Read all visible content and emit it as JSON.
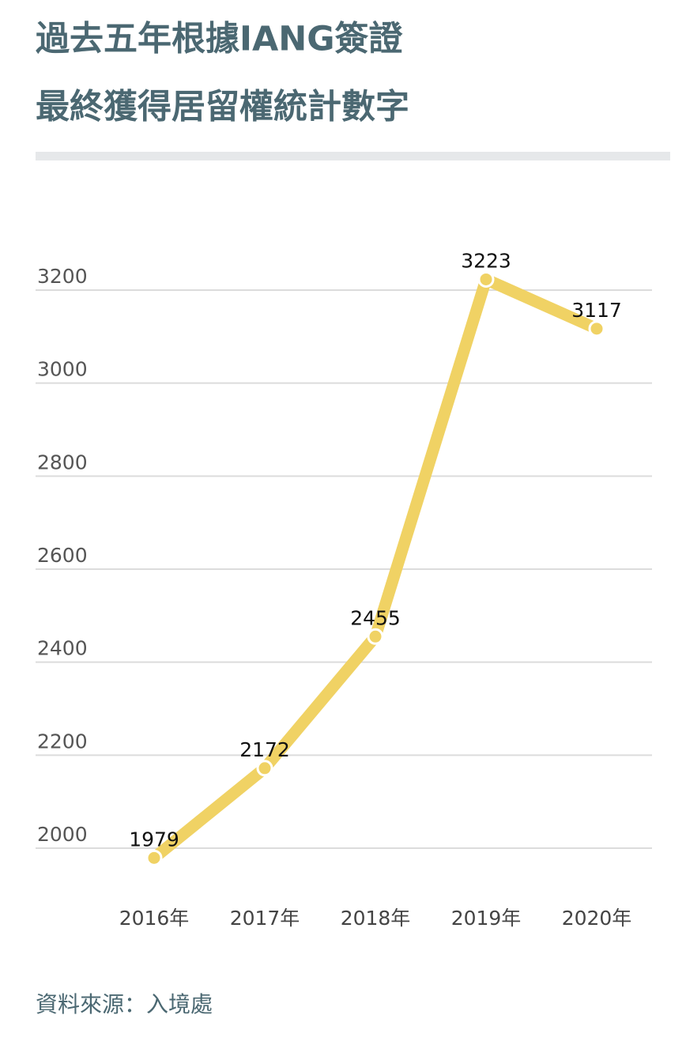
{
  "chart_data": {
    "type": "line",
    "title": [
      "過去五年根據IANG簽證",
      "最終獲得居留權統計數字"
    ],
    "source": "資料來源：入境處",
    "categories": [
      "2016年",
      "2017年",
      "2018年",
      "2019年",
      "2020年"
    ],
    "series": [
      {
        "color": "#f0d264",
        "values": [
          1979,
          2172,
          2455,
          3223,
          3117
        ]
      }
    ],
    "ylim": [
      2000,
      3200
    ],
    "yticks": [
      2000,
      2200,
      2400,
      2600,
      2800,
      3000,
      3200
    ],
    "grid": true
  }
}
